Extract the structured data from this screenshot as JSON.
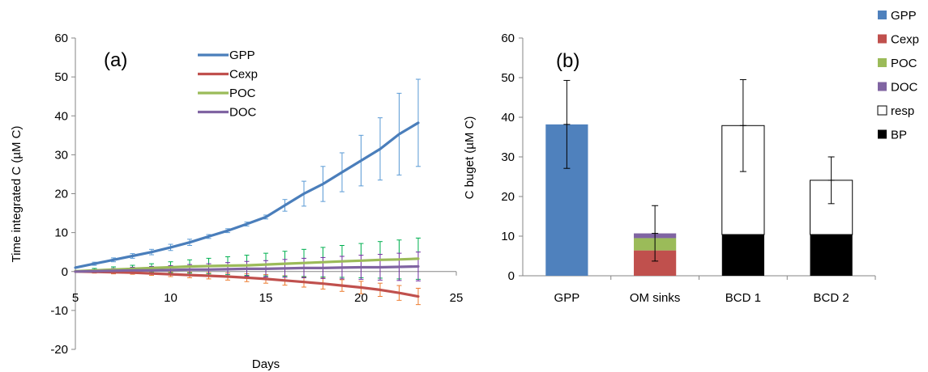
{
  "chart_data": [
    {
      "type": "line",
      "panel_label": "(a)",
      "xlabel": "Days",
      "ylabel": "Time integrated C (µM C)",
      "xlim": [
        5,
        25
      ],
      "ylim": [
        -20,
        60
      ],
      "xticks": [
        "5",
        "10",
        "15",
        "20",
        "25"
      ],
      "yticks": [
        "-20",
        "-10",
        "0",
        "10",
        "20",
        "30",
        "40",
        "50",
        "60"
      ],
      "legend_position": "top-center",
      "grid": false,
      "x": [
        5,
        6,
        7,
        8,
        9,
        10,
        11,
        12,
        13,
        14,
        15,
        16,
        17,
        18,
        19,
        20,
        21,
        22,
        23
      ],
      "series": [
        {
          "name": "GPP",
          "color": "#4a7ebb",
          "error_color": "#5b9bd5",
          "values": [
            1.0,
            2.0,
            3.0,
            4.0,
            5.0,
            6.2,
            7.5,
            9.0,
            10.5,
            12.2,
            14.0,
            17.0,
            20.0,
            22.5,
            25.5,
            28.5,
            31.5,
            35.3,
            38.2
          ],
          "errors": [
            0.3,
            0.4,
            0.5,
            0.6,
            0.7,
            0.8,
            0.8,
            0.5,
            0.5,
            0.5,
            0.5,
            1.5,
            3.2,
            4.5,
            5.0,
            6.5,
            8.0,
            10.5,
            11.2
          ]
        },
        {
          "name": "Cexp",
          "color": "#c0504d",
          "error_color": "#ed7d31",
          "values": [
            0.0,
            -0.1,
            -0.2,
            -0.3,
            -0.5,
            -0.7,
            -0.9,
            -1.1,
            -1.3,
            -1.6,
            -1.9,
            -2.3,
            -2.7,
            -3.1,
            -3.6,
            -4.1,
            -4.7,
            -5.5,
            -6.4
          ],
          "errors": [
            0.3,
            0.3,
            0.4,
            0.4,
            0.5,
            0.6,
            0.7,
            0.8,
            0.9,
            1.0,
            1.1,
            1.2,
            1.3,
            1.4,
            1.5,
            1.6,
            1.7,
            1.9,
            2.1
          ]
        },
        {
          "name": "POC",
          "color": "#9bbb59",
          "error_color": "#00b050",
          "values": [
            0.1,
            0.3,
            0.5,
            0.7,
            0.9,
            1.1,
            1.3,
            1.4,
            1.5,
            1.6,
            1.8,
            2.0,
            2.2,
            2.4,
            2.6,
            2.8,
            3.0,
            3.1,
            3.3
          ],
          "errors": [
            0.3,
            0.5,
            0.7,
            0.9,
            1.1,
            1.4,
            1.7,
            2.0,
            2.3,
            2.6,
            2.9,
            3.2,
            3.5,
            3.8,
            4.1,
            4.4,
            4.7,
            5.0,
            5.3
          ]
        },
        {
          "name": "DOC",
          "color": "#8064a2",
          "error_color": "#7030a0",
          "values": [
            0.0,
            0.1,
            0.2,
            0.3,
            0.3,
            0.4,
            0.5,
            0.5,
            0.6,
            0.7,
            0.7,
            0.8,
            0.9,
            0.9,
            1.0,
            1.1,
            1.1,
            1.2,
            1.3
          ],
          "errors": [
            0.3,
            0.4,
            0.6,
            0.8,
            1.0,
            1.1,
            1.3,
            1.5,
            1.7,
            1.9,
            2.1,
            2.3,
            2.5,
            2.7,
            2.9,
            3.1,
            3.3,
            3.5,
            3.7
          ]
        }
      ]
    },
    {
      "type": "bar",
      "stacked": true,
      "panel_label": "(b)",
      "ylabel": "C buget (µM C)",
      "xlabel": "",
      "ylim": [
        0,
        60
      ],
      "yticks": [
        "0",
        "10",
        "20",
        "30",
        "40",
        "50",
        "60"
      ],
      "categories": [
        "GPP",
        "OM sinks",
        "BCD 1",
        "BCD 2"
      ],
      "legend_position": "right",
      "grid": false,
      "series": [
        {
          "name": "GPP",
          "color": "#4f81bd",
          "values": [
            38.2,
            0,
            0,
            0
          ]
        },
        {
          "name": "Cexp",
          "color": "#c0504d",
          "values": [
            0,
            6.4,
            0,
            0
          ]
        },
        {
          "name": "POC",
          "color": "#9bbb59",
          "values": [
            0,
            3.1,
            0,
            0
          ]
        },
        {
          "name": "DOC",
          "color": "#8064a2",
          "values": [
            0,
            1.2,
            0,
            0
          ]
        },
        {
          "name": "resp",
          "color": "#ffffff",
          "values": [
            0,
            0,
            27.5,
            13.7
          ]
        },
        {
          "name": "BP",
          "color": "#000000",
          "values": [
            0,
            0,
            10.4,
            10.4
          ]
        }
      ],
      "totals": [
        38.2,
        10.7,
        37.9,
        24.1
      ],
      "totals_error": [
        11.1,
        7.0,
        11.6,
        5.9
      ]
    }
  ]
}
